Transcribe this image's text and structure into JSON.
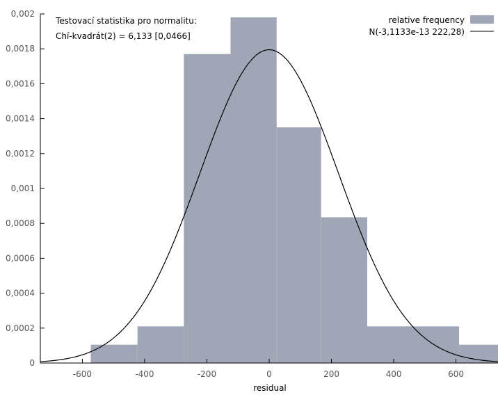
{
  "chart_data": {
    "type": "bar",
    "title": "",
    "xlabel": "residual",
    "ylabel": "",
    "xlim": [
      -735,
      735
    ],
    "ylim": [
      0,
      0.002
    ],
    "x_ticks": [
      -600,
      -400,
      -200,
      0,
      200,
      400,
      600
    ],
    "x_tick_labels": [
      "-600",
      "-400",
      "-200",
      "0",
      "200",
      "400",
      "600"
    ],
    "y_ticks": [
      0,
      0.0002,
      0.0004,
      0.0006,
      0.0008,
      0.001,
      0.0012,
      0.0014,
      0.0016,
      0.0018,
      0.002
    ],
    "y_tick_labels": [
      "0",
      "0,0002",
      "0,0004",
      "0,0006",
      "0,0008",
      "0,001",
      "0,0012",
      "0,0014",
      "0,0016",
      "0,0018",
      "0,002"
    ],
    "grid": false,
    "legend_position": "top-right",
    "bar_color": "#a0a6b5",
    "curve_color": "#000000",
    "histogram": {
      "name": "relative frequency",
      "bins": [
        {
          "x0": -573,
          "x1": -423,
          "value": 0.000105
        },
        {
          "x0": -423,
          "x1": -274,
          "value": 0.00021
        },
        {
          "x0": -274,
          "x1": -124,
          "value": 0.00177
        },
        {
          "x0": -124,
          "x1": 24,
          "value": 0.00198
        },
        {
          "x0": 24,
          "x1": 167,
          "value": 0.00135
        },
        {
          "x0": 167,
          "x1": 315,
          "value": 0.000835
        },
        {
          "x0": 315,
          "x1": 610,
          "value": 0.00021
        },
        {
          "x0": 610,
          "x1": 735,
          "value": 0.000105
        }
      ]
    },
    "curve": {
      "name": "N(-3,1133e-13 222,28)",
      "mean": 0,
      "sd": 222.28
    },
    "annotation": {
      "line1": "Testovací statistika pro normalitu:",
      "line2": "Chí-kvadrát(2) = 6,133 [0,0466]"
    }
  }
}
